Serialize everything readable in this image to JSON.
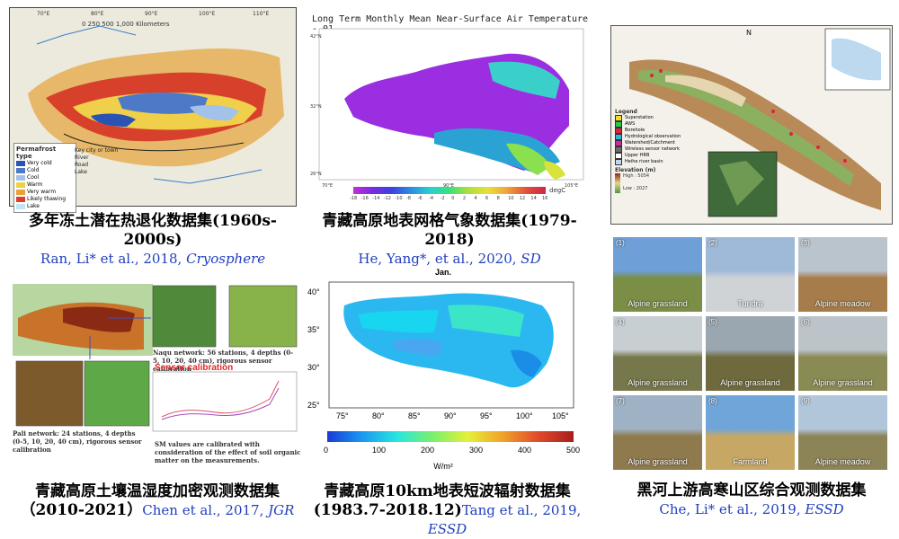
{
  "panels": [
    {
      "title": "多年冻土潜在热退化数据集(1960s-2000s)",
      "citation_authors": "Ran, Li* et al., 2018, ",
      "citation_journal": "Cryosphere",
      "legend_title": "Permafrost type",
      "legend_items": [
        "Very cold",
        "Cold",
        "Cool",
        "Warm",
        "Very warm",
        "Likely thawing",
        "Lake"
      ],
      "legend_keys": [
        "Key city or town",
        "River",
        "Road",
        "Lake"
      ],
      "scale_text": "0   250   500        1,000 Kilometers"
    },
    {
      "title": "青藏高原地表网格气象数据集(1979-2018)",
      "citation_authors": "He, Yang*, et al., 2020, ",
      "citation_journal": "SD",
      "map_title": "Long Term Monthly Mean Near-Surface Air Temperature - 01",
      "colorbar_ticks": [
        "-18",
        "-16",
        "-14",
        "-12",
        "-10",
        "-8",
        "-6",
        "-4",
        "-2",
        "0",
        "2",
        "4",
        "6",
        "8",
        "10",
        "12",
        "14",
        "16"
      ],
      "unit": "degC"
    },
    {
      "title": "黑河上游高寒山区综合观测数据集",
      "citation_authors": "Che, Li* et al., 2019, ",
      "citation_journal": "ESSD",
      "legend_title": "Legend",
      "legend_items": [
        "Superstation",
        "AWS",
        "Borehole",
        "Hydrological observation",
        "Watershed/Catchment",
        "Wireless sensor network",
        "Upper HRB",
        "Heihe river basin"
      ],
      "elevation_title": "Elevation (m)",
      "elev_high": "High : 5054",
      "elev_low": "Low : 2027"
    },
    {
      "title": "青藏高原土壤温湿度加密观测数据集",
      "title2": "（2010-2021）",
      "citation_authors": "Chen et al., 2017, ",
      "citation_journal": "JGR",
      "naqu_text": "Naqu network:  56 stations, 4 depths (0-5, 10, 20, 40 cm), rigorous sensor calibration",
      "pali_text": "Pali network:  24 stations, 4 depths (0-5, 10, 20, 40 cm), rigorous sensor calibration",
      "sensor_title": "Sensor calibration",
      "sm_text": "SM values are calibrated with consideration of the effect of soil organic matter on the measurements."
    },
    {
      "title": "青藏高原10km地表短波辐射数据集",
      "title_years": "(1983.7-2018.12)",
      "citation_authors": "Tang et al., 2019, ",
      "citation_journal": "ESSD",
      "map_title": "Jan.",
      "x_ticks": [
        "75°",
        "80°",
        "85°",
        "90°",
        "95°",
        "100°",
        "105°"
      ],
      "y_ticks": [
        "40°",
        "35°",
        "30°",
        "25°"
      ],
      "cbar_ticks": [
        "0",
        "100",
        "200",
        "300",
        "400",
        "500"
      ],
      "cbar_unit": "W/m²"
    }
  ],
  "photos": [
    {
      "num": "(1)",
      "label": "Alpine grassland",
      "sky": "#6e9fd6",
      "ground": "#7a8e45"
    },
    {
      "num": "(2)",
      "label": "Tundra",
      "sky": "#9fb9d8",
      "ground": "#cfd3d6"
    },
    {
      "num": "(3)",
      "label": "Alpine meadow",
      "sky": "#b9c4cd",
      "ground": "#a57c4a"
    },
    {
      "num": "(4)",
      "label": "Alpine grassland",
      "sky": "#c8cfd3",
      "ground": "#76774a"
    },
    {
      "num": "(5)",
      "label": "Alpine grassland",
      "sky": "#9aa6b0",
      "ground": "#6f6a3e"
    },
    {
      "num": "(6)",
      "label": "Alpine grassland",
      "sky": "#bcc4ca",
      "ground": "#8a8a54"
    },
    {
      "num": "(7)",
      "label": "Alpine grassland",
      "sky": "#9fb1c4",
      "ground": "#8f7a4e"
    },
    {
      "num": "(8)",
      "label": "Farmland",
      "sky": "#6fa5d9",
      "ground": "#c7a764"
    },
    {
      "num": "(9)",
      "label": "Alpine meadow",
      "sky": "#b2c6db",
      "ground": "#8c8457"
    }
  ]
}
